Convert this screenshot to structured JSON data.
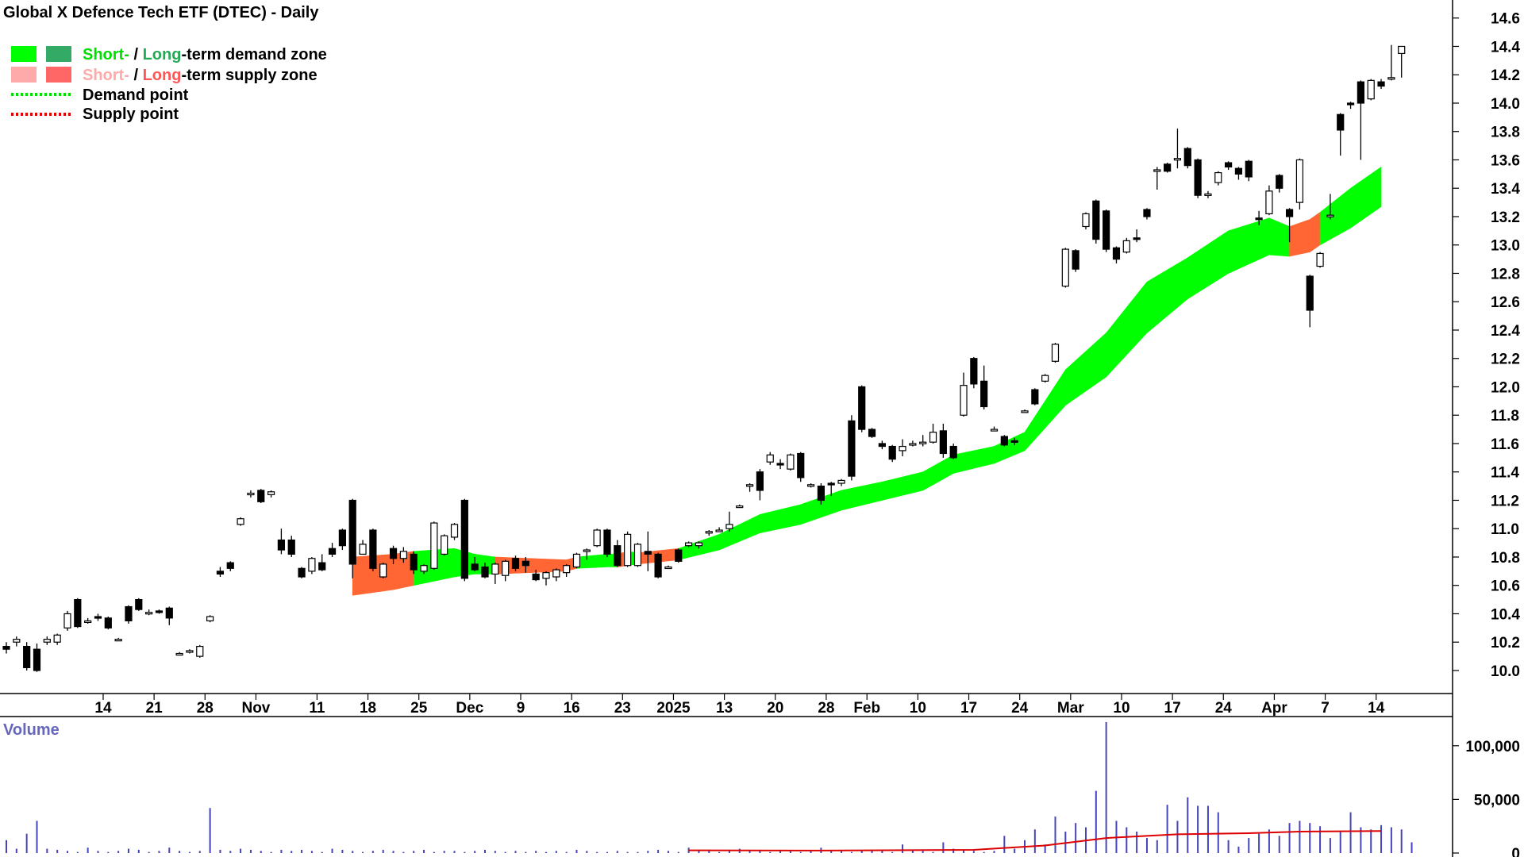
{
  "title": "Global X Defence Tech ETF (DTEC) - Daily",
  "colors": {
    "demand_short": "#00ff00",
    "demand_long": "#33aa66",
    "supply_short": "#ffaaaa",
    "supply_long": "#ff6666",
    "zone_demand_fill": "#00ff00",
    "zone_supply_fill": "#ff6633",
    "volume_bars": "#4444bb",
    "volume_avg": "#dd0000",
    "volume_label": "#6666bb"
  },
  "legend": {
    "demand_short_word": "Short-",
    "demand_sep": " / ",
    "demand_long_word": "Long",
    "demand_rest": "-term demand zone",
    "supply_short_word": "Short-",
    "supply_sep": " / ",
    "supply_long_word": "Long",
    "supply_rest": "-term supply zone",
    "demand_point": "Demand point",
    "supply_point": "Supply point"
  },
  "volume_title": "Volume",
  "chart_data": {
    "type": "candlestick",
    "ylim": [
      9.86,
      14.66
    ],
    "yticks": [
      10.0,
      10.2,
      10.4,
      10.6,
      10.8,
      11.0,
      11.2,
      11.4,
      11.6,
      11.8,
      12.0,
      12.2,
      12.4,
      12.6,
      12.8,
      13.0,
      13.2,
      13.4,
      13.6,
      13.8,
      14.0,
      14.2,
      14.4,
      14.6
    ],
    "ytick_labels": [
      "10.0",
      "10.2",
      "10.4",
      "10.6",
      "10.8",
      "11.0",
      "11.2",
      "11.4",
      "11.6",
      "11.8",
      "12.0",
      "12.2",
      "12.4",
      "12.6",
      "12.8",
      "13.0",
      "13.2",
      "13.4",
      "13.6",
      "13.8",
      "14.0",
      "14.2",
      "14.4",
      "14.6"
    ],
    "xtick_labels": [
      {
        "label": "14",
        "day": 6
      },
      {
        "label": "21",
        "day": 11
      },
      {
        "label": "28",
        "day": 16
      },
      {
        "label": "Nov",
        "day": 21
      },
      {
        "label": "11",
        "day": 27
      },
      {
        "label": "18",
        "day": 32
      },
      {
        "label": "25",
        "day": 37
      },
      {
        "label": "Dec",
        "day": 42
      },
      {
        "label": "9",
        "day": 47
      },
      {
        "label": "16",
        "day": 52
      },
      {
        "label": "23",
        "day": 57
      },
      {
        "label": "2025",
        "day": 62
      },
      {
        "label": "13",
        "day": 67
      },
      {
        "label": "20",
        "day": 72
      },
      {
        "label": "28",
        "day": 77
      },
      {
        "label": "Feb",
        "day": 81
      },
      {
        "label": "10",
        "day": 86
      },
      {
        "label": "17",
        "day": 91
      },
      {
        "label": "24",
        "day": 96
      },
      {
        "label": "Mar",
        "day": 101
      },
      {
        "label": "10",
        "day": 106
      },
      {
        "label": "17",
        "day": 111
      },
      {
        "label": "24",
        "day": 116
      },
      {
        "label": "Apr",
        "day": 121
      },
      {
        "label": "7",
        "day": 126
      },
      {
        "label": "14",
        "day": 131
      }
    ],
    "candles": [
      [
        10.17,
        10.2,
        10.12,
        10.15
      ],
      [
        10.2,
        10.24,
        10.17,
        10.22
      ],
      [
        10.17,
        10.2,
        10.0,
        10.02
      ],
      [
        10.15,
        10.19,
        9.99,
        10.0
      ],
      [
        10.2,
        10.24,
        10.18,
        10.22
      ],
      [
        10.2,
        10.26,
        10.18,
        10.25
      ],
      [
        10.3,
        10.42,
        10.28,
        10.4
      ],
      [
        10.5,
        10.51,
        10.3,
        10.31
      ],
      [
        10.35,
        10.37,
        10.33,
        10.35
      ],
      [
        10.38,
        10.4,
        10.35,
        10.37
      ],
      [
        10.37,
        10.38,
        10.29,
        10.3
      ],
      [
        10.22,
        10.23,
        10.21,
        10.22
      ],
      [
        10.45,
        10.46,
        10.33,
        10.35
      ],
      [
        10.5,
        10.51,
        10.42,
        10.43
      ],
      [
        10.41,
        10.43,
        10.39,
        10.41
      ],
      [
        10.42,
        10.43,
        10.4,
        10.41
      ],
      [
        10.44,
        10.45,
        10.32,
        10.37
      ],
      [
        10.12,
        10.13,
        10.11,
        10.12
      ],
      [
        10.13,
        10.15,
        10.12,
        10.14
      ],
      [
        10.1,
        10.18,
        10.09,
        10.17
      ],
      [
        10.35,
        10.39,
        10.34,
        10.38
      ],
      [
        10.7,
        10.73,
        10.66,
        10.68
      ],
      [
        10.76,
        10.77,
        10.7,
        10.72
      ],
      [
        11.03,
        11.08,
        11.02,
        11.07
      ],
      [
        11.24,
        11.27,
        11.22,
        11.25
      ],
      [
        11.27,
        11.28,
        11.18,
        11.19
      ],
      [
        11.24,
        11.27,
        11.22,
        11.26
      ],
      [
        10.92,
        11.0,
        10.82,
        10.85
      ],
      [
        10.92,
        10.95,
        10.8,
        10.82
      ],
      [
        10.72,
        10.73,
        10.65,
        10.66
      ],
      [
        10.7,
        10.8,
        10.68,
        10.79
      ],
      [
        10.76,
        10.82,
        10.7,
        10.71
      ],
      [
        10.86,
        10.9,
        10.8,
        10.82
      ],
      [
        10.99,
        11.0,
        10.85,
        10.88
      ],
      [
        11.2,
        11.21,
        10.65,
        10.75
      ],
      [
        10.82,
        10.92,
        10.84,
        10.89
      ],
      [
        10.99,
        11.0,
        10.7,
        10.72
      ],
      [
        10.66,
        10.76,
        10.65,
        10.75
      ],
      [
        10.86,
        10.88,
        10.75,
        10.79
      ],
      [
        10.79,
        10.87,
        10.76,
        10.84
      ],
      [
        10.82,
        10.84,
        10.68,
        10.71
      ],
      [
        10.7,
        10.75,
        10.68,
        10.74
      ],
      [
        10.72,
        11.05,
        10.71,
        11.04
      ],
      [
        10.82,
        10.96,
        10.81,
        10.95
      ],
      [
        10.94,
        11.04,
        10.92,
        11.03
      ],
      [
        11.2,
        11.21,
        10.63,
        10.65
      ],
      [
        10.75,
        10.8,
        10.7,
        10.71
      ],
      [
        10.73,
        10.76,
        10.65,
        10.66
      ],
      [
        10.68,
        10.76,
        10.61,
        10.75
      ],
      [
        10.67,
        10.78,
        10.63,
        10.77
      ],
      [
        10.79,
        10.81,
        10.7,
        10.72
      ],
      [
        10.77,
        10.8,
        10.69,
        10.74
      ],
      [
        10.68,
        10.71,
        10.63,
        10.64
      ],
      [
        10.65,
        10.7,
        10.6,
        10.69
      ],
      [
        10.66,
        10.72,
        10.63,
        10.71
      ],
      [
        10.69,
        10.75,
        10.66,
        10.74
      ],
      [
        10.73,
        10.83,
        10.72,
        10.82
      ],
      [
        10.84,
        10.86,
        10.78,
        10.85
      ],
      [
        10.88,
        11.0,
        10.87,
        10.99
      ],
      [
        10.99,
        11.0,
        10.8,
        10.82
      ],
      [
        10.88,
        10.92,
        10.73,
        10.74
      ],
      [
        10.74,
        10.98,
        10.73,
        10.96
      ],
      [
        10.74,
        10.9,
        10.73,
        10.89
      ],
      [
        10.84,
        10.98,
        10.7,
        10.82
      ],
      [
        10.82,
        10.83,
        10.65,
        10.66
      ],
      [
        10.73,
        10.74,
        10.72,
        10.73
      ],
      [
        10.85,
        10.86,
        10.76,
        10.77
      ],
      [
        10.88,
        10.91,
        10.87,
        10.9
      ],
      [
        10.88,
        10.91,
        10.86,
        10.9
      ],
      [
        10.97,
        10.99,
        10.95,
        10.98
      ],
      [
        10.99,
        11.01,
        10.98,
        10.99
      ],
      [
        11.0,
        11.12,
        10.98,
        11.03
      ],
      [
        11.16,
        11.17,
        11.15,
        11.16
      ],
      [
        11.3,
        11.32,
        11.26,
        11.31
      ],
      [
        11.4,
        11.42,
        11.2,
        11.27
      ],
      [
        11.47,
        11.54,
        11.45,
        11.52
      ],
      [
        11.46,
        11.49,
        11.42,
        11.45
      ],
      [
        11.42,
        11.53,
        11.41,
        11.52
      ],
      [
        11.53,
        11.54,
        11.33,
        11.36
      ],
      [
        11.3,
        11.32,
        11.29,
        11.31
      ],
      [
        11.3,
        11.32,
        11.17,
        11.2
      ],
      [
        11.32,
        11.33,
        11.23,
        11.31
      ],
      [
        11.32,
        11.35,
        11.3,
        11.34
      ],
      [
        11.76,
        11.8,
        11.34,
        11.37
      ],
      [
        12.0,
        12.01,
        11.68,
        11.7
      ],
      [
        11.7,
        11.71,
        11.64,
        11.65
      ],
      [
        11.6,
        11.62,
        11.56,
        11.58
      ],
      [
        11.58,
        11.59,
        11.47,
        11.49
      ],
      [
        11.55,
        11.63,
        11.51,
        11.58
      ],
      [
        11.6,
        11.62,
        11.58,
        11.6
      ],
      [
        11.6,
        11.66,
        11.58,
        11.61
      ],
      [
        11.61,
        11.74,
        11.6,
        11.68
      ],
      [
        11.69,
        11.74,
        11.5,
        11.53
      ],
      [
        11.58,
        11.6,
        11.49,
        11.5
      ],
      [
        11.8,
        12.1,
        11.79,
        12.01
      ],
      [
        12.2,
        12.21,
        11.99,
        12.02
      ],
      [
        12.04,
        12.15,
        11.84,
        11.86
      ],
      [
        11.7,
        11.72,
        11.69,
        11.7
      ],
      [
        11.65,
        11.66,
        11.58,
        11.59
      ],
      [
        11.62,
        11.64,
        11.59,
        11.61
      ],
      [
        11.83,
        11.84,
        11.82,
        11.83
      ],
      [
        11.98,
        11.99,
        11.87,
        11.88
      ],
      [
        12.04,
        12.09,
        12.03,
        12.08
      ],
      [
        12.18,
        12.31,
        12.17,
        12.3
      ],
      [
        12.71,
        12.98,
        12.7,
        12.97
      ],
      [
        12.96,
        12.97,
        12.81,
        12.83
      ],
      [
        13.13,
        13.23,
        13.11,
        13.22
      ],
      [
        13.31,
        13.32,
        13.01,
        13.04
      ],
      [
        13.24,
        13.25,
        12.95,
        12.97
      ],
      [
        12.98,
        12.99,
        12.87,
        12.9
      ],
      [
        12.95,
        13.05,
        12.94,
        13.03
      ],
      [
        13.05,
        13.11,
        13.02,
        13.04
      ],
      [
        13.25,
        13.26,
        13.18,
        13.2
      ],
      [
        13.52,
        13.55,
        13.39,
        13.53
      ],
      [
        13.57,
        13.58,
        13.51,
        13.52
      ],
      [
        13.6,
        13.82,
        13.54,
        13.61
      ],
      [
        13.68,
        13.69,
        13.54,
        13.56
      ],
      [
        13.6,
        13.61,
        13.33,
        13.35
      ],
      [
        13.35,
        13.38,
        13.33,
        13.36
      ],
      [
        13.44,
        13.52,
        13.42,
        13.51
      ],
      [
        13.58,
        13.59,
        13.53,
        13.55
      ],
      [
        13.54,
        13.55,
        13.46,
        13.5
      ],
      [
        13.59,
        13.6,
        13.45,
        13.48
      ],
      [
        13.19,
        13.24,
        13.14,
        13.18
      ],
      [
        13.22,
        13.42,
        13.21,
        13.38
      ],
      [
        13.49,
        13.5,
        13.37,
        13.4
      ],
      [
        13.25,
        13.26,
        13.02,
        13.2
      ],
      [
        13.3,
        13.61,
        13.25,
        13.6
      ],
      [
        12.78,
        12.79,
        12.42,
        12.54
      ],
      [
        12.85,
        12.95,
        12.84,
        12.94
      ],
      [
        13.2,
        13.36,
        13.18,
        13.21
      ],
      [
        13.92,
        13.93,
        13.63,
        13.81
      ],
      [
        14.0,
        14.01,
        13.96,
        13.99
      ],
      [
        14.15,
        14.16,
        13.6,
        14.0
      ],
      [
        14.03,
        14.17,
        14.02,
        14.16
      ],
      [
        14.15,
        14.17,
        14.1,
        14.12
      ],
      [
        14.17,
        14.41,
        14.16,
        14.18
      ],
      [
        14.35,
        14.4,
        14.18,
        14.4
      ]
    ],
    "zone": [
      {
        "day": 34,
        "upper": 10.8,
        "lower": 10.53,
        "kind": "supply"
      },
      {
        "day": 38,
        "upper": 10.82,
        "lower": 10.57,
        "kind": "supply"
      },
      {
        "day": 40,
        "upper": 10.84,
        "lower": 10.6,
        "kind": "demand"
      },
      {
        "day": 44,
        "upper": 10.86,
        "lower": 10.66,
        "kind": "demand"
      },
      {
        "day": 46,
        "upper": 10.82,
        "lower": 10.68,
        "kind": "demand"
      },
      {
        "day": 48,
        "upper": 10.8,
        "lower": 10.68,
        "kind": "supply"
      },
      {
        "day": 55,
        "upper": 10.78,
        "lower": 10.7,
        "kind": "supply"
      },
      {
        "day": 56,
        "upper": 10.8,
        "lower": 10.72,
        "kind": "demand"
      },
      {
        "day": 59,
        "upper": 10.82,
        "lower": 10.73,
        "kind": "demand"
      },
      {
        "day": 60,
        "upper": 10.82,
        "lower": 10.73,
        "kind": "supply"
      },
      {
        "day": 61,
        "upper": 10.84,
        "lower": 10.74,
        "kind": "demand"
      },
      {
        "day": 62,
        "upper": 10.83,
        "lower": 10.75,
        "kind": "supply"
      },
      {
        "day": 66,
        "upper": 10.86,
        "lower": 10.78,
        "kind": "demand"
      },
      {
        "day": 70,
        "upper": 10.96,
        "lower": 10.85,
        "kind": "demand"
      },
      {
        "day": 74,
        "upper": 11.1,
        "lower": 10.97,
        "kind": "demand"
      },
      {
        "day": 78,
        "upper": 11.17,
        "lower": 11.03,
        "kind": "demand"
      },
      {
        "day": 82,
        "upper": 11.27,
        "lower": 11.13,
        "kind": "demand"
      },
      {
        "day": 86,
        "upper": 11.33,
        "lower": 11.2,
        "kind": "demand"
      },
      {
        "day": 90,
        "upper": 11.4,
        "lower": 11.27,
        "kind": "demand"
      },
      {
        "day": 93,
        "upper": 11.52,
        "lower": 11.39,
        "kind": "demand"
      },
      {
        "day": 97,
        "upper": 11.58,
        "lower": 11.46,
        "kind": "demand"
      },
      {
        "day": 100,
        "upper": 11.68,
        "lower": 11.55,
        "kind": "demand"
      },
      {
        "day": 104,
        "upper": 12.12,
        "lower": 11.87,
        "kind": "demand"
      },
      {
        "day": 108,
        "upper": 12.38,
        "lower": 12.07,
        "kind": "demand"
      },
      {
        "day": 112,
        "upper": 12.74,
        "lower": 12.38,
        "kind": "demand"
      },
      {
        "day": 116,
        "upper": 12.91,
        "lower": 12.62,
        "kind": "demand"
      },
      {
        "day": 120,
        "upper": 13.1,
        "lower": 12.8,
        "kind": "demand"
      },
      {
        "day": 124,
        "upper": 13.19,
        "lower": 12.93,
        "kind": "demand"
      },
      {
        "day": 126,
        "upper": 13.13,
        "lower": 12.92,
        "kind": "supply"
      },
      {
        "day": 128,
        "upper": 13.18,
        "lower": 12.95,
        "kind": "supply"
      },
      {
        "day": 129,
        "upper": 13.23,
        "lower": 13.0,
        "kind": "demand"
      },
      {
        "day": 132,
        "upper": 13.4,
        "lower": 13.12,
        "kind": "demand"
      },
      {
        "day": 135,
        "upper": 13.55,
        "lower": 13.27,
        "kind": "demand"
      }
    ],
    "volume": {
      "ylim": [
        0,
        125000
      ],
      "yticks": [
        0,
        50000,
        100000
      ],
      "ytick_labels": [
        "0",
        "50,000",
        "100,000"
      ],
      "bars": [
        12000,
        4000,
        18000,
        30000,
        4000,
        3000,
        2000,
        1000,
        5000,
        2000,
        1000,
        2000,
        4000,
        3000,
        1000,
        2000,
        5000,
        2000,
        1000,
        2000,
        42000,
        3000,
        2000,
        4000,
        3000,
        2000,
        1000,
        3000,
        2000,
        3000,
        2000,
        1000,
        4000,
        3000,
        2000,
        1000,
        2000,
        3000,
        2000,
        1000,
        2000,
        3000,
        1000,
        2000,
        2000,
        1000,
        2000,
        3000,
        2000,
        1000,
        2000,
        1000,
        2000,
        1000,
        2000,
        1000,
        3000,
        2000,
        1000,
        1000,
        2000,
        1000,
        1000,
        2000,
        3000,
        2000,
        1000,
        5000,
        3000,
        2000,
        1000,
        2000,
        4000,
        3000,
        2000,
        1000,
        3000,
        2000,
        1000,
        2000,
        5000,
        3000,
        2000,
        1000,
        2000,
        3000,
        2000,
        1000,
        8000,
        3000,
        2000,
        1000,
        10000,
        4000,
        3000,
        2000,
        1000,
        2000,
        16000,
        4000,
        12000,
        22000,
        8000,
        34000,
        20000,
        28000,
        24000,
        58000,
        122000,
        30000,
        24000,
        20000,
        14000,
        12000,
        45000,
        30000,
        52000,
        44000,
        44000,
        38000,
        12000,
        6000,
        14000,
        18000,
        22000,
        16000,
        28000,
        30000,
        28000,
        25000,
        14000,
        20000,
        38000,
        24000,
        22000,
        26000,
        24000,
        22000,
        10000
      ],
      "avg_start_day": 67,
      "avg": [
        {
          "day": 67,
          "v": 2500
        },
        {
          "day": 80,
          "v": 2300
        },
        {
          "day": 95,
          "v": 3000
        },
        {
          "day": 102,
          "v": 7000
        },
        {
          "day": 108,
          "v": 14000
        },
        {
          "day": 115,
          "v": 17500
        },
        {
          "day": 122,
          "v": 18500
        },
        {
          "day": 127,
          "v": 20000
        },
        {
          "day": 135,
          "v": 20500
        }
      ]
    }
  }
}
